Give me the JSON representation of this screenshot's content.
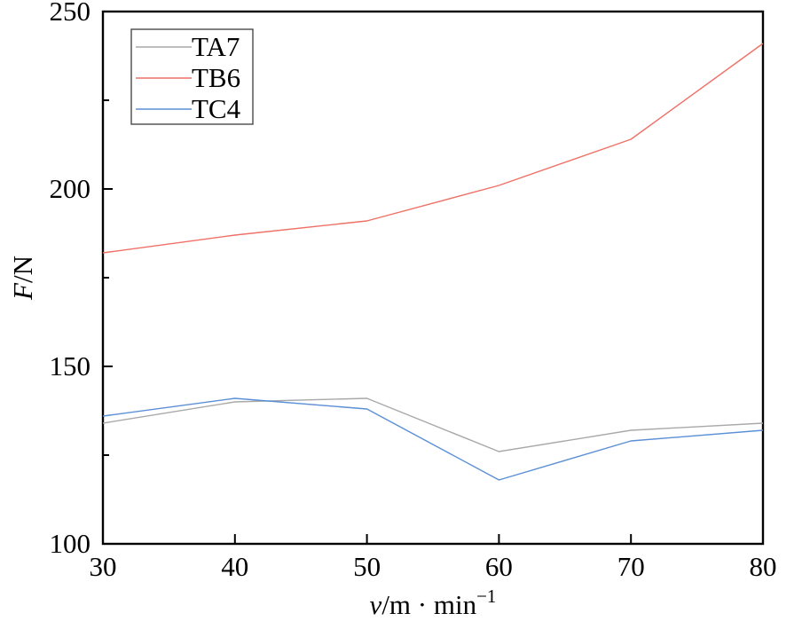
{
  "chart_data": {
    "type": "line",
    "title": "",
    "x": [
      30,
      40,
      50,
      60,
      70,
      80
    ],
    "series": [
      {
        "name": "TA7",
        "color": "#a9a9a9",
        "values": [
          134,
          140,
          141,
          126,
          132,
          134
        ]
      },
      {
        "name": "TB6",
        "color": "#ee7166",
        "values": [
          182,
          187,
          191,
          201,
          214,
          241
        ]
      },
      {
        "name": "TC4",
        "color": "#5b8fd6",
        "values": [
          136,
          141,
          138,
          118,
          129,
          132
        ]
      }
    ],
    "xlabel": "v/m · min⁻¹",
    "xlabel_parts": {
      "italic": "v",
      "mid": "/m · min",
      "sup": "−1"
    },
    "ylabel": "F/N",
    "ylabel_parts": {
      "italic": "F",
      "rest": "/N"
    },
    "xlim": [
      30,
      80
    ],
    "ylim": [
      100,
      250
    ],
    "x_ticks": [
      30,
      40,
      50,
      60,
      70,
      80
    ],
    "y_ticks": [
      100,
      150,
      200,
      250
    ],
    "y_minor_ticks": [
      125,
      175,
      225
    ],
    "legend": {
      "position": "top-left",
      "entries": [
        "TA7",
        "TB6",
        "TC4"
      ]
    },
    "grid": false,
    "axis_color": "#000000",
    "legend_border_color": "#4a4a4a",
    "background": "#ffffff"
  }
}
